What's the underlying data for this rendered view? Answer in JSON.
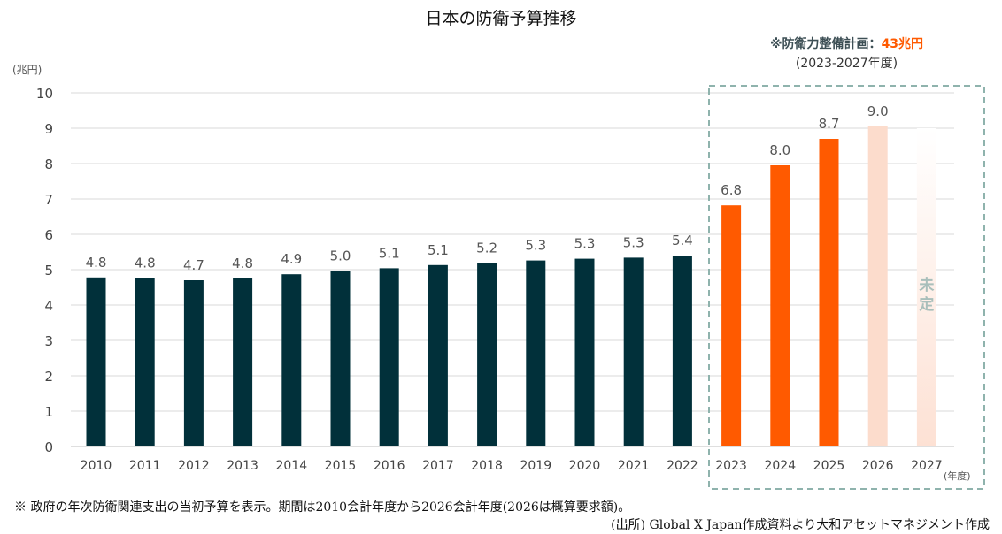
{
  "chart_data": {
    "type": "bar",
    "title": "日本の防衛予算推移",
    "ylabel": "(兆円)",
    "xlabel": "(年度)",
    "ylim": [
      0,
      10
    ],
    "yticks": [
      0,
      1,
      2,
      3,
      4,
      5,
      6,
      7,
      8,
      9,
      10
    ],
    "grid": true,
    "categories": [
      "2010",
      "2011",
      "2012",
      "2013",
      "2014",
      "2015",
      "2016",
      "2017",
      "2018",
      "2019",
      "2020",
      "2021",
      "2022",
      "2023",
      "2024",
      "2025",
      "2026",
      "2027"
    ],
    "values": [
      4.8,
      4.8,
      4.7,
      4.8,
      4.9,
      5.0,
      5.1,
      5.1,
      5.2,
      5.3,
      5.3,
      5.3,
      5.4,
      6.8,
      8.0,
      8.7,
      9.0,
      null
    ],
    "plot_values": [
      4.78,
      4.76,
      4.7,
      4.75,
      4.87,
      4.96,
      5.04,
      5.13,
      5.19,
      5.26,
      5.31,
      5.34,
      5.4,
      6.82,
      7.95,
      8.7,
      9.05,
      9.0
    ],
    "data_labels": [
      "4.8",
      "4.8",
      "4.7",
      "4.8",
      "4.9",
      "5.0",
      "5.1",
      "5.1",
      "5.2",
      "5.3",
      "5.3",
      "5.3",
      "5.4",
      "6.8",
      "8.0",
      "8.7",
      "9.0",
      ""
    ],
    "bar_styles": [
      "past",
      "past",
      "past",
      "past",
      "past",
      "past",
      "past",
      "past",
      "past",
      "past",
      "past",
      "past",
      "past",
      "plan",
      "plan",
      "plan",
      "request",
      "undecided"
    ],
    "colors": {
      "past": "#01303a",
      "plan": "#ff5a00",
      "request": "#fcdccc",
      "undecided_top": "#ffffff",
      "undecided_bottom": "#fde1d4",
      "grid": "#d9d9d9",
      "box": "#8fb3ad",
      "undecided_text": "#a9bfbb"
    },
    "plan_box": {
      "label_prefix": "※防衛力整備計画：",
      "label_amount": "43兆円",
      "period": "(2023-2027年度)"
    },
    "undecided_label": "未定"
  },
  "notes": {
    "footnote": "※ 政府の年次防衛関連支出の当初予算を表示。期間は2010会計年度から2026会計年度(2026は概算要求額)。",
    "source": "(出所) Global X Japan作成資料より大和アセットマネジメント作成"
  }
}
